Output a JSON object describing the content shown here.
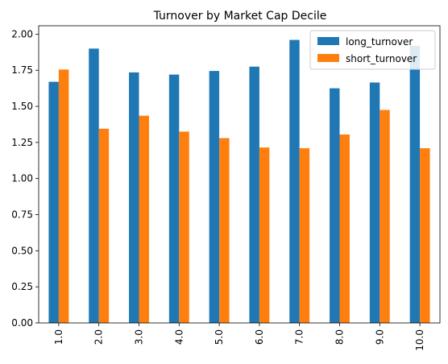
{
  "chart_data": {
    "type": "bar",
    "title": "Turnover by Market Cap Decile",
    "xlabel": "",
    "ylabel": "",
    "categories": [
      "1.0",
      "2.0",
      "3.0",
      "4.0",
      "5.0",
      "6.0",
      "7.0",
      "8.0",
      "9.0",
      "10.0"
    ],
    "series": [
      {
        "name": "long_turnover",
        "color": "#1f77b4",
        "values": [
          1.67,
          1.9,
          1.735,
          1.72,
          1.745,
          1.775,
          1.96,
          1.625,
          1.665,
          1.92
        ]
      },
      {
        "name": "short_turnover",
        "color": "#ff7f0e",
        "values": [
          1.755,
          1.345,
          1.435,
          1.325,
          1.28,
          1.215,
          1.21,
          1.305,
          1.475,
          1.21
        ]
      }
    ],
    "ylim": [
      0,
      2.058
    ],
    "yticks": [
      "0.00",
      "0.25",
      "0.50",
      "0.75",
      "1.00",
      "1.25",
      "1.50",
      "1.75",
      "2.00"
    ],
    "xtick_rotation": 90,
    "legend": "top-right",
    "grid": false
  }
}
